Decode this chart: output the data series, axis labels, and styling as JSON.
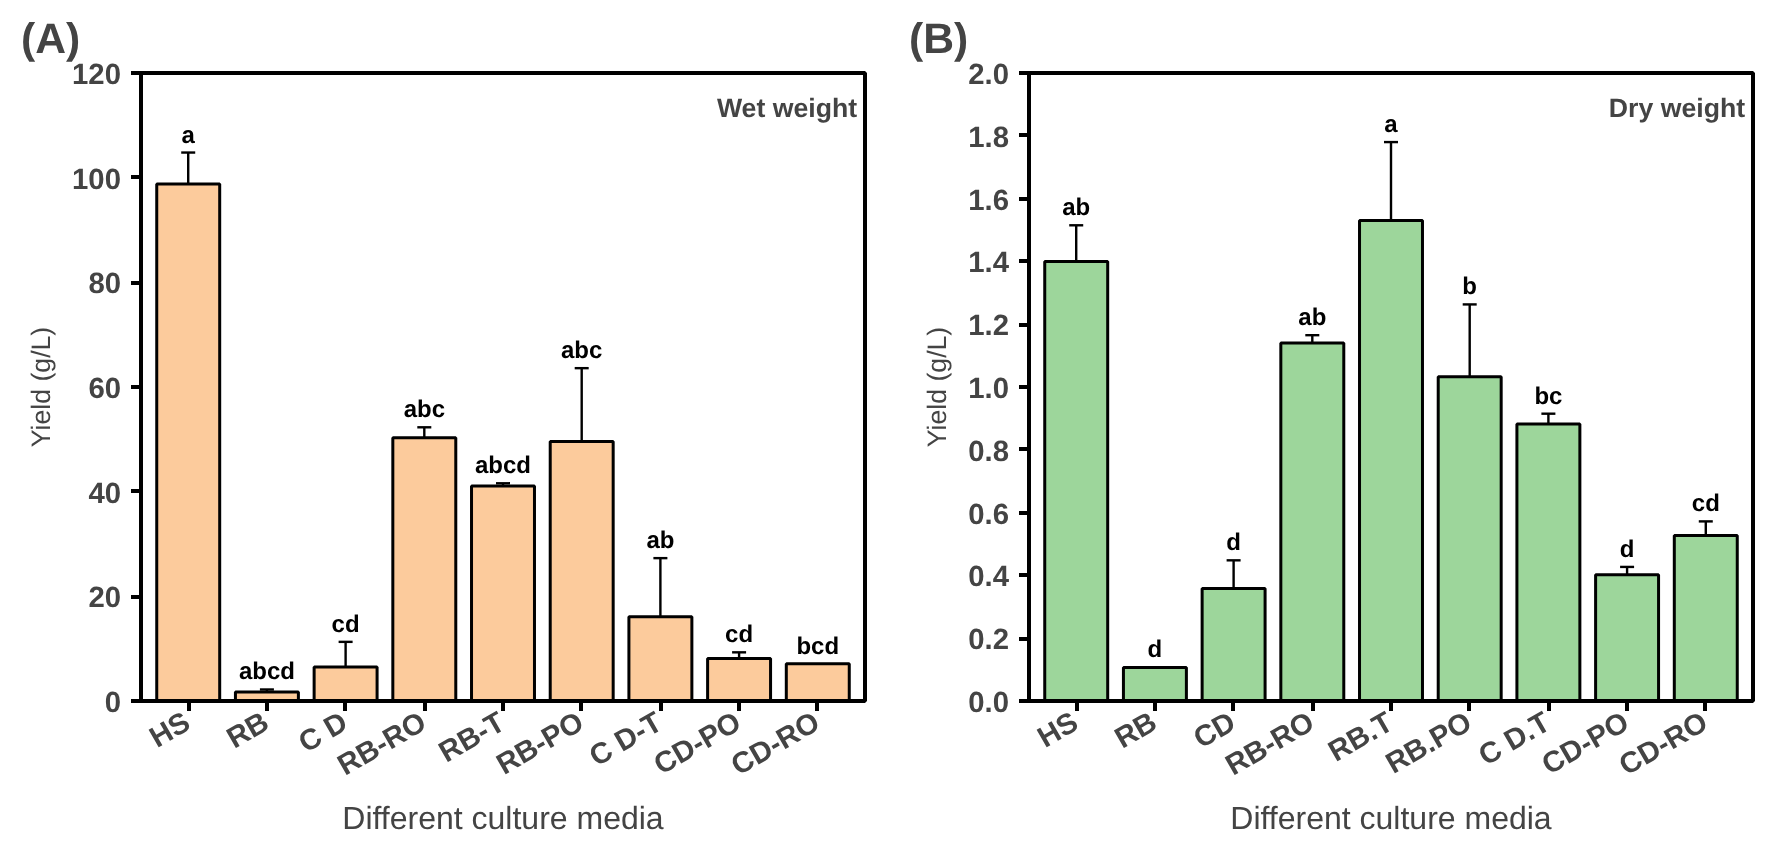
{
  "chart_data": [
    {
      "type": "bar",
      "title": "(A)",
      "xlabel": "Different culture media",
      "ylabel": "Yield (g/L)",
      "categories": [
        "HS",
        "RB",
        "C D",
        "RB-RO",
        "RB-T",
        "RB-PO",
        "C D-T",
        "CD-PO",
        "CD-RO"
      ],
      "values": [
        98.8,
        1.7,
        6.5,
        50.3,
        41.1,
        49.6,
        16.1,
        8.1,
        7.1
      ],
      "errors": [
        6.0,
        0.5,
        4.8,
        2.0,
        0.5,
        14.0,
        11.2,
        1.2,
        null
      ],
      "color": "#fccb9c",
      "ylim": [
        0,
        120
      ],
      "yticks": [
        0,
        20,
        40,
        60,
        80,
        100,
        120
      ],
      "grid": false,
      "annotations": [
        "Wet weight",
        {
          "text": "a",
          "x": "HS",
          "y": 104.8
        },
        {
          "text": "abcd",
          "x": "RB",
          "y": 2.2
        },
        {
          "text": "cd",
          "x": "C D",
          "y": 11.3
        },
        {
          "text": "abc",
          "x": "RB-RO",
          "y": 52.3
        },
        {
          "text": "abcd",
          "x": "RB-T",
          "y": 41.6
        },
        {
          "text": "abc",
          "x": "RB-PO",
          "y": 63.6
        },
        {
          "text": "ab",
          "x": "C D-T",
          "y": 27.3
        },
        {
          "text": "cd",
          "x": "CD-PO",
          "y": 9.3
        },
        {
          "text": "bcd",
          "x": "CD-RO",
          "y": 7.1
        }
      ]
    },
    {
      "type": "bar",
      "title": "(B)",
      "xlabel": "Different culture media",
      "ylabel": "Yield (g/L)",
      "categories": [
        "HS",
        "RB",
        "CD",
        "RB-RO",
        "RB.T",
        "RB.PO",
        "C D.T",
        "CD-PO",
        "CD-RO"
      ],
      "values": [
        1.4,
        0.107,
        0.358,
        1.14,
        1.53,
        1.033,
        0.882,
        0.402,
        0.527
      ],
      "errors": [
        0.115,
        null,
        0.09,
        0.025,
        0.25,
        0.23,
        0.033,
        0.025,
        0.045
      ],
      "color": "#9dd69b",
      "ylim": [
        0,
        2.0
      ],
      "yticks": [
        {
          "value": 0,
          "label": "0.0"
        },
        0.2,
        0.4,
        0.6,
        0.8,
        {
          "value": 1,
          "label": "1.0"
        },
        1.2,
        1.4,
        1.6,
        1.8,
        {
          "value": 2,
          "label": "2.0"
        }
      ],
      "grid": false,
      "annotations": [
        "Dry weight",
        {
          "text": "ab",
          "x": "HS",
          "y": 1.515
        },
        {
          "text": "d",
          "x": "RB",
          "y": 0.107
        },
        {
          "text": "d",
          "x": "CD",
          "y": 0.448
        },
        {
          "text": "ab",
          "x": "RB-RO",
          "y": 1.165
        },
        {
          "text": "a",
          "x": "RB.T",
          "y": 1.78
        },
        {
          "text": "b",
          "x": "RB.PO",
          "y": 1.263
        },
        {
          "text": "bc",
          "x": "C D.T",
          "y": 0.915
        },
        {
          "text": "d",
          "x": "CD-PO",
          "y": 0.427
        },
        {
          "text": "cd",
          "x": "CD-RO",
          "y": 0.572
        }
      ]
    }
  ]
}
